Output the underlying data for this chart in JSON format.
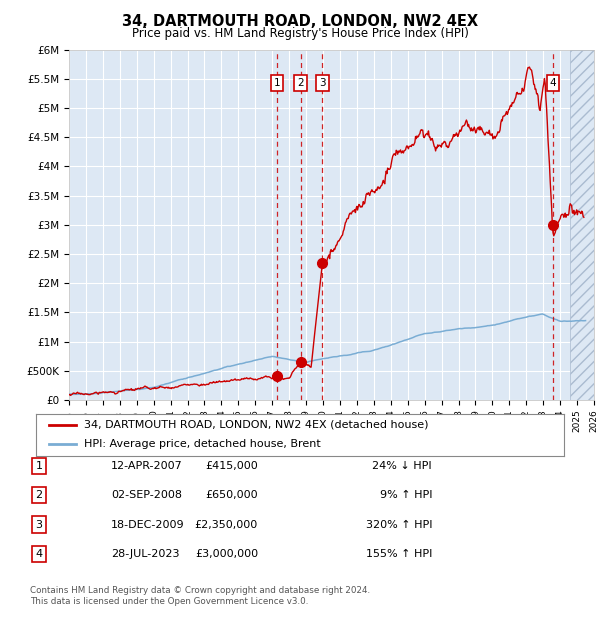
{
  "title": "34, DARTMOUTH ROAD, LONDON, NW2 4EX",
  "subtitle": "Price paid vs. HM Land Registry's House Price Index (HPI)",
  "legend_line1": "34, DARTMOUTH ROAD, LONDON, NW2 4EX (detached house)",
  "legend_line2": "HPI: Average price, detached house, Brent",
  "footer1": "Contains HM Land Registry data © Crown copyright and database right 2024.",
  "footer2": "This data is licensed under the Open Government Licence v3.0.",
  "transactions": [
    {
      "label": "1",
      "x_years": 2007.28,
      "price": 415000
    },
    {
      "label": "2",
      "x_years": 2008.67,
      "price": 650000
    },
    {
      "label": "3",
      "x_years": 2009.96,
      "price": 2350000
    },
    {
      "label": "4",
      "x_years": 2023.57,
      "price": 3000000
    }
  ],
  "table_rows": [
    [
      "1",
      "12-APR-2007",
      "£415,000",
      "24% ↓ HPI"
    ],
    [
      "2",
      "02-SEP-2008",
      "£650,000",
      "9% ↑ HPI"
    ],
    [
      "3",
      "18-DEC-2009",
      "£2,350,000",
      "320% ↑ HPI"
    ],
    [
      "4",
      "28-JUL-2023",
      "£3,000,000",
      "155% ↑ HPI"
    ]
  ],
  "ylim": [
    0,
    6000000
  ],
  "xlim_years": [
    1995,
    2026
  ],
  "hatch_start": 2024.58,
  "background_color": "#dde8f4",
  "grid_color": "#ffffff",
  "red_line_color": "#cc0000",
  "blue_line_color": "#7aadd4",
  "dashed_color": "#cc0000",
  "dot_color": "#cc0000",
  "label_box_color": "#cc0000",
  "ytick_labels": [
    "£0",
    "£500K",
    "£1M",
    "£1.5M",
    "£2M",
    "£2.5M",
    "£3M",
    "£3.5M",
    "£4M",
    "£4.5M",
    "£5M",
    "£5.5M",
    "£6M"
  ],
  "ytick_values": [
    0,
    500000,
    1000000,
    1500000,
    2000000,
    2500000,
    3000000,
    3500000,
    4000000,
    4500000,
    5000000,
    5500000,
    6000000
  ]
}
